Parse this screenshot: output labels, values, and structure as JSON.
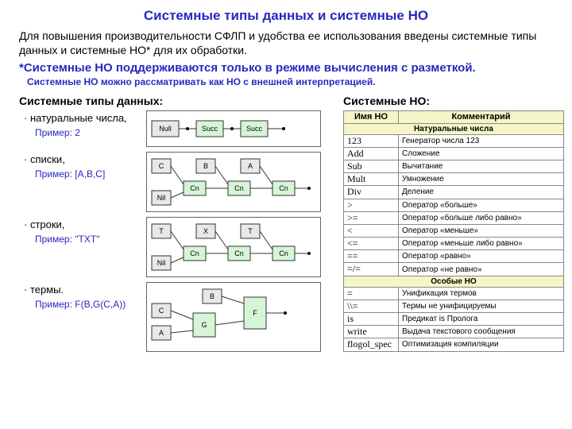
{
  "title": "Системные типы данных и системные НО",
  "title_color": "#2828c0",
  "intro": "Для повышения производительности СФЛП и удобства ее использования введены системные типы данных и системные НО* для их обработки.",
  "note1": "*Системные НО поддерживаются только в режиме вычисления с разметкой.",
  "note2": "Системные НО можно рассматривать как НО с внешней интерпретацией.",
  "note_color": "#2828c0",
  "left_head": "Системные типы данных:",
  "right_head": "Системные НО:",
  "bullets": [
    {
      "label": "· натуральные числа,",
      "example": "Пример: 2"
    },
    {
      "label": "· списки,",
      "example": "Пример: [A,B,C]"
    },
    {
      "label": "· строки,",
      "example": "Пример: \"TXT\""
    },
    {
      "label": "· термы.",
      "example": "Пример: F(B,G(C,A))"
    }
  ],
  "diagrams": {
    "nat": {
      "boxes": [
        "Null",
        "Succ",
        "Succ"
      ],
      "box_fill": "#d6f5d6",
      "null_fill": "#e8e8e8"
    },
    "list": {
      "tops": [
        "C",
        "B",
        "A"
      ],
      "cns": [
        "Cn",
        "Cn",
        "Cn"
      ],
      "nil": "Nil",
      "box_fill": "#d6f5d6",
      "other_fill": "#e8e8e8"
    },
    "str": {
      "tops": [
        "T",
        "X",
        "T"
      ],
      "cns": [
        "Cn",
        "Cn",
        "Cn"
      ],
      "nil": "Nil",
      "box_fill": "#d6f5d6",
      "other_fill": "#e8e8e8"
    },
    "term": {
      "c": "C",
      "a": "A",
      "b": "B",
      "g": "G",
      "f": "F",
      "box_fill": "#d6f5d6",
      "other_fill": "#e8e8e8"
    }
  },
  "table": {
    "headers": [
      "Имя НО",
      "Комментарий"
    ],
    "sections": [
      {
        "title": "Натуральные числа",
        "rows": [
          [
            "123",
            "Генератор числа 123"
          ],
          [
            "Add",
            "Сложение"
          ],
          [
            "Sub",
            "Вычитание"
          ],
          [
            "Mult",
            "Умножение"
          ],
          [
            "Div",
            "Деление"
          ],
          [
            ">",
            "Оператор «больше»"
          ],
          [
            ">=",
            "Оператор «больше либо равно»"
          ],
          [
            "<",
            "Оператор «меньше»"
          ],
          [
            "<=",
            "Оператор «меньше либо равно»"
          ],
          [
            "==",
            "Оператор «равно»"
          ],
          [
            "=/=",
            "Оператор «не равно»"
          ]
        ]
      },
      {
        "title": "Особые НО",
        "rows": [
          [
            "=",
            "Унификация термов"
          ],
          [
            "\\\\=",
            "Термы не унифицируемы"
          ],
          [
            "is",
            "Предикат is Пролога"
          ],
          [
            "write",
            "Выдача текстового сообщения"
          ],
          [
            "flogol_spec",
            "Оптимизация компиляции"
          ]
        ]
      }
    ]
  }
}
